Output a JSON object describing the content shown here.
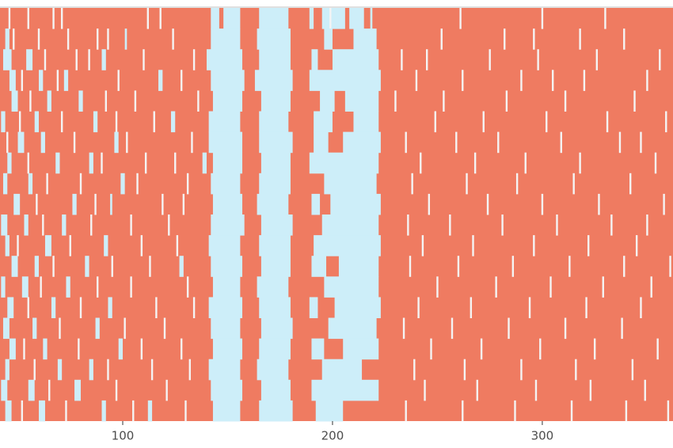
{
  "chart_data": {
    "type": "tile",
    "xlim": [
      41.5,
      362.3
    ],
    "xticks": [
      100,
      200,
      300
    ],
    "colors": {
      "high": "#ef7b61",
      "low": "#cdeef9",
      "missing": "#f4f4f4"
    },
    "rows": [
      {
        "low": [
          [
            142,
            146
          ],
          [
            148,
            156
          ],
          [
            165,
            179
          ],
          [
            189,
            191
          ],
          [
            195,
            206
          ],
          [
            208,
            215
          ],
          [
            218,
            219
          ]
        ],
        "missing": [
          46,
          55,
          67,
          71,
          112,
          118,
          199,
          261,
          300,
          330
        ]
      },
      {
        "low": [
          [
            44,
            46
          ],
          [
            101,
            102
          ],
          [
            142,
            156
          ],
          [
            164,
            180
          ],
          [
            196,
            200
          ],
          [
            210,
            221
          ]
        ],
        "missing": [
          48,
          60,
          74,
          88,
          93,
          124,
          252,
          282,
          296,
          318,
          339
        ]
      },
      {
        "low": [
          [
            43,
            47
          ],
          [
            54,
            57
          ],
          [
            90,
            92
          ],
          [
            140,
            157
          ],
          [
            165,
            180
          ],
          [
            190,
            193
          ],
          [
            200,
            222
          ]
        ],
        "missing": [
          63,
          78,
          84,
          110,
          134,
          233,
          245,
          275,
          298,
          326,
          356
        ]
      },
      {
        "low": [
          [
            46,
            49
          ],
          [
            60,
            62
          ],
          [
            72,
            74
          ],
          [
            117,
            119
          ],
          [
            142,
            158
          ],
          [
            163,
            181
          ],
          [
            189,
            223
          ]
        ],
        "missing": [
          52,
          69,
          98,
          128,
          240,
          262,
          290,
          305,
          320,
          350
        ]
      },
      {
        "low": [
          [
            47,
            50
          ],
          [
            64,
            66
          ],
          [
            79,
            81
          ],
          [
            143,
            157
          ],
          [
            166,
            180
          ],
          [
            194,
            201
          ],
          [
            206,
            222
          ]
        ],
        "missing": [
          56,
          92,
          106,
          136,
          230,
          253,
          283,
          311,
          344
        ]
      },
      {
        "low": [
          [
            42,
            44
          ],
          [
            58,
            60
          ],
          [
            86,
            88
          ],
          [
            123,
            125
          ],
          [
            141,
            156
          ],
          [
            165,
            179
          ],
          [
            191,
            200
          ],
          [
            210,
            222
          ]
        ],
        "missing": [
          51,
          71,
          97,
          115,
          249,
          272,
          302,
          331,
          359
        ]
      },
      {
        "low": [
          [
            50,
            53
          ],
          [
            61,
            63
          ],
          [
            96,
            98
          ],
          [
            141,
            157
          ],
          [
            165,
            181
          ],
          [
            191,
            198
          ],
          [
            205,
            223
          ]
        ],
        "missing": [
          45,
          77,
          102,
          133,
          235,
          259,
          279,
          309,
          337,
          347
        ]
      },
      {
        "low": [
          [
            45,
            47
          ],
          [
            68,
            70
          ],
          [
            84,
            86
          ],
          [
            138,
            140
          ],
          [
            143,
            157
          ],
          [
            166,
            180
          ],
          [
            189,
            222
          ]
        ],
        "missing": [
          55,
          90,
          111,
          125,
          242,
          268,
          292,
          318,
          354
        ]
      },
      {
        "low": [
          [
            43,
            45
          ],
          [
            55,
            57
          ],
          [
            99,
            101
          ],
          [
            142,
            156
          ],
          [
            165,
            180
          ],
          [
            196,
            221
          ]
        ],
        "missing": [
          64,
          80,
          107,
          131,
          238,
          264,
          288,
          315,
          342
        ]
      },
      {
        "low": [
          [
            48,
            51
          ],
          [
            76,
            78
          ],
          [
            94,
            95
          ],
          [
            143,
            157
          ],
          [
            164,
            179
          ],
          [
            190,
            194
          ],
          [
            199,
            223
          ]
        ],
        "missing": [
          59,
          87,
          119,
          129,
          246,
          274,
          300,
          327,
          358
        ]
      },
      {
        "low": [
          [
            42,
            45
          ],
          [
            53,
            55
          ],
          [
            71,
            73
          ],
          [
            142,
            158
          ],
          [
            166,
            181
          ],
          [
            195,
            222
          ]
        ],
        "missing": [
          62,
          85,
          104,
          122,
          236,
          256,
          281,
          307,
          333,
          350
        ]
      },
      {
        "low": [
          [
            44,
            46
          ],
          [
            63,
            66
          ],
          [
            91,
            93
          ],
          [
            141,
            156
          ],
          [
            165,
            180
          ],
          [
            191,
            223
          ]
        ],
        "missing": [
          50,
          75,
          109,
          126,
          243,
          267,
          296,
          322,
          345
        ]
      },
      {
        "low": [
          [
            47,
            50
          ],
          [
            58,
            60
          ],
          [
            82,
            84
          ],
          [
            127,
            129
          ],
          [
            142,
            157
          ],
          [
            166,
            180
          ],
          [
            190,
            197
          ],
          [
            203,
            222
          ]
        ],
        "missing": [
          67,
          95,
          113,
          237,
          260,
          286,
          313,
          339,
          361
        ]
      },
      {
        "low": [
          [
            42,
            44
          ],
          [
            52,
            55
          ],
          [
            73,
            75
          ],
          [
            143,
            156
          ],
          [
            164,
            179
          ],
          [
            196,
            222
          ]
        ],
        "missing": [
          61,
          88,
          104,
          131,
          250,
          278,
          304,
          329,
          352
        ]
      },
      {
        "low": [
          [
            45,
            48
          ],
          [
            66,
            68
          ],
          [
            93,
            95
          ],
          [
            141,
            157
          ],
          [
            165,
            180
          ],
          [
            189,
            193
          ],
          [
            201,
            223
          ]
        ],
        "missing": [
          55,
          80,
          116,
          134,
          241,
          266,
          294,
          321,
          347
        ]
      },
      {
        "low": [
          [
            43,
            46
          ],
          [
            57,
            59
          ],
          [
            87,
            89
          ],
          [
            142,
            156
          ],
          [
            166,
            181
          ],
          [
            198,
            221
          ]
        ],
        "missing": [
          70,
          101,
          120,
          234,
          257,
          284,
          311,
          338
        ]
      },
      {
        "low": [
          [
            46,
            49
          ],
          [
            62,
            64
          ],
          [
            98,
            100
          ],
          [
            143,
            157
          ],
          [
            165,
            180
          ],
          [
            190,
            196
          ],
          [
            205,
            222
          ]
        ],
        "missing": [
          53,
          79,
          109,
          128,
          247,
          271,
          299,
          325,
          355
        ]
      },
      {
        "low": [
          [
            44,
            46
          ],
          [
            69,
            71
          ],
          [
            84,
            86
          ],
          [
            141,
            156
          ],
          [
            164,
            179
          ],
          [
            195,
            214
          ]
        ],
        "missing": [
          58,
          93,
          114,
          132,
          239,
          263,
          290,
          316,
          343
        ]
      },
      {
        "low": [
          [
            42,
            45
          ],
          [
            55,
            58
          ],
          [
            77,
            80
          ],
          [
            142,
            157
          ],
          [
            166,
            180
          ],
          [
            190,
            222
          ]
        ],
        "missing": [
          65,
          97,
          121,
          244,
          269,
          297,
          323,
          349
        ]
      },
      {
        "low": [
          [
            44,
            47
          ],
          [
            60,
            63
          ],
          [
            90,
            92
          ],
          [
            112,
            114
          ],
          [
            143,
            156
          ],
          [
            165,
            181
          ],
          [
            192,
            205
          ]
        ],
        "missing": [
          52,
          73,
          105,
          130,
          235,
          262,
          287,
          314,
          340,
          360
        ]
      }
    ]
  }
}
